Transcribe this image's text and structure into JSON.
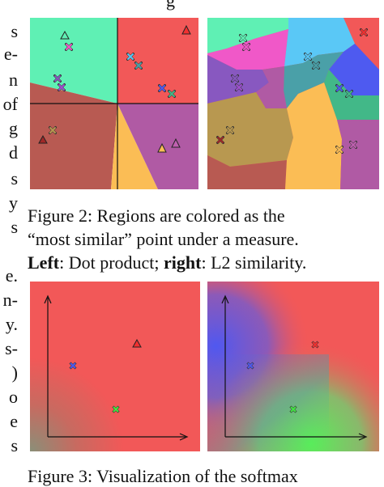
{
  "left_column_fragments": [
    "s",
    "e-",
    "n",
    "of",
    "g",
    "d",
    "s",
    "y",
    "s",
    "e.",
    "n-",
    "y.",
    "s-",
    ")",
    "o",
    "e",
    "s"
  ],
  "top_fragment": "g",
  "figure2": {
    "caption_line1": "Figure 2:  Regions are colored as the",
    "caption_line2": "“most similar” point under a measure.",
    "caption_line3_bold1": "Left",
    "caption_line3_text1": ": Dot product; ",
    "caption_line3_bold2": "right",
    "caption_line3_text2": ": L2 similarity.",
    "left_panel": "Dot product",
    "right_panel": "L2 similarity",
    "colors": {
      "teal": "#5ff0b4",
      "red": "#f25858",
      "brown": "#b85a52",
      "orange": "#fbbd55",
      "purple": "#b05aa4",
      "magenta": "#f058c8",
      "sky": "#5ac8f6",
      "steel": "#4aa0a8",
      "blue": "#4e5af0",
      "violet": "#8858c0",
      "green": "#42b888",
      "olive": "#b89850"
    }
  },
  "figure3": {
    "caption_line1": "Figure 3: Visualization of the softmax",
    "colors": {
      "red": "#f25858",
      "blue": "#5858f0",
      "green": "#58f058"
    }
  }
}
